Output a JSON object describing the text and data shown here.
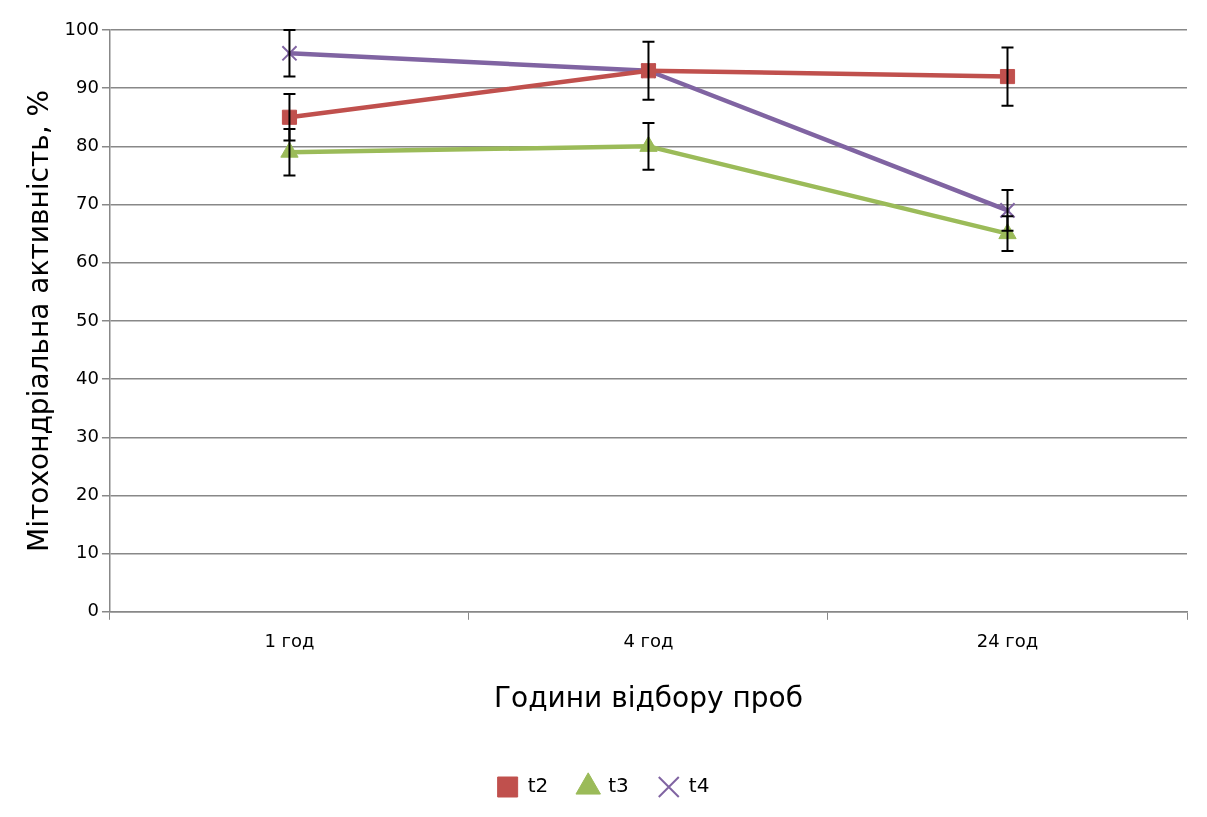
{
  "chart_data": {
    "type": "line",
    "xlabel": "Години відбору проб",
    "ylabel": "Мітохондріальна активність, %",
    "categories": [
      "1 год",
      "4 год",
      "24 год"
    ],
    "series": [
      {
        "name": "t2",
        "color": "#c0504d",
        "marker": "square",
        "values": [
          85,
          93,
          92
        ],
        "errors": [
          4,
          5,
          5
        ]
      },
      {
        "name": "t3",
        "color": "#9bbb59",
        "marker": "triangle",
        "values": [
          79,
          80,
          65
        ],
        "errors": [
          4,
          4,
          3
        ]
      },
      {
        "name": "t4",
        "color": "#8064a2",
        "marker": "cross",
        "values": [
          96,
          93,
          69
        ],
        "errors": [
          4,
          null,
          3.5
        ]
      }
    ],
    "ylim": [
      0,
      100
    ],
    "yticks": [
      0,
      10,
      20,
      30,
      40,
      50,
      60,
      70,
      80,
      90,
      100
    ],
    "grid": "y",
    "legend": "bottom"
  }
}
